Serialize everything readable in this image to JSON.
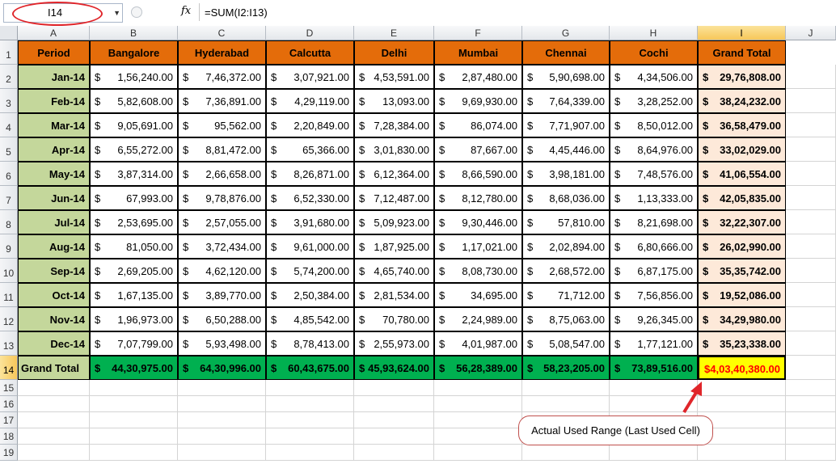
{
  "formula_bar": {
    "name_box": "I14",
    "fx_label": "fx",
    "formula": "=SUM(I2:I13)"
  },
  "columns": [
    "A",
    "B",
    "C",
    "D",
    "E",
    "F",
    "G",
    "H",
    "I",
    "J"
  ],
  "rows": [
    "1",
    "2",
    "3",
    "4",
    "5",
    "6",
    "7",
    "8",
    "9",
    "10",
    "11",
    "12",
    "13",
    "14",
    "15",
    "16",
    "17",
    "18",
    "19"
  ],
  "table": {
    "headers": [
      "Period",
      "Bangalore",
      "Hyderabad",
      "Calcutta",
      "Delhi",
      "Mumbai",
      "Chennai",
      "Cochi",
      "Grand Total"
    ],
    "currency": "$",
    "data": [
      {
        "period": "Jan-14",
        "values": [
          "1,56,240.00",
          "7,46,372.00",
          "3,07,921.00",
          "4,53,591.00",
          "2,87,480.00",
          "5,90,698.00",
          "4,34,506.00",
          "29,76,808.00"
        ]
      },
      {
        "period": "Feb-14",
        "values": [
          "5,82,608.00",
          "7,36,891.00",
          "4,29,119.00",
          "13,093.00",
          "9,69,930.00",
          "7,64,339.00",
          "3,28,252.00",
          "38,24,232.00"
        ]
      },
      {
        "period": "Mar-14",
        "values": [
          "9,05,691.00",
          "95,562.00",
          "2,20,849.00",
          "7,28,384.00",
          "86,074.00",
          "7,71,907.00",
          "8,50,012.00",
          "36,58,479.00"
        ]
      },
      {
        "period": "Apr-14",
        "values": [
          "6,55,272.00",
          "8,81,472.00",
          "65,366.00",
          "3,01,830.00",
          "87,667.00",
          "4,45,446.00",
          "8,64,976.00",
          "33,02,029.00"
        ]
      },
      {
        "period": "May-14",
        "values": [
          "3,87,314.00",
          "2,66,658.00",
          "8,26,871.00",
          "6,12,364.00",
          "8,66,590.00",
          "3,98,181.00",
          "7,48,576.00",
          "41,06,554.00"
        ]
      },
      {
        "period": "Jun-14",
        "values": [
          "67,993.00",
          "9,78,876.00",
          "6,52,330.00",
          "7,12,487.00",
          "8,12,780.00",
          "8,68,036.00",
          "1,13,333.00",
          "42,05,835.00"
        ]
      },
      {
        "period": "Jul-14",
        "values": [
          "2,53,695.00",
          "2,57,055.00",
          "3,91,680.00",
          "5,09,923.00",
          "9,30,446.00",
          "57,810.00",
          "8,21,698.00",
          "32,22,307.00"
        ]
      },
      {
        "period": "Aug-14",
        "values": [
          "81,050.00",
          "3,72,434.00",
          "9,61,000.00",
          "1,87,925.00",
          "1,17,021.00",
          "2,02,894.00",
          "6,80,666.00",
          "26,02,990.00"
        ]
      },
      {
        "period": "Sep-14",
        "values": [
          "2,69,205.00",
          "4,62,120.00",
          "5,74,200.00",
          "4,65,740.00",
          "8,08,730.00",
          "2,68,572.00",
          "6,87,175.00",
          "35,35,742.00"
        ]
      },
      {
        "period": "Oct-14",
        "values": [
          "1,67,135.00",
          "3,89,770.00",
          "2,50,384.00",
          "2,81,534.00",
          "34,695.00",
          "71,712.00",
          "7,56,856.00",
          "19,52,086.00"
        ]
      },
      {
        "period": "Nov-14",
        "values": [
          "1,96,973.00",
          "6,50,288.00",
          "4,85,542.00",
          "70,780.00",
          "2,24,989.00",
          "8,75,063.00",
          "9,26,345.00",
          "34,29,980.00"
        ]
      },
      {
        "period": "Dec-14",
        "values": [
          "7,07,799.00",
          "5,93,498.00",
          "8,78,413.00",
          "2,55,973.00",
          "4,01,987.00",
          "5,08,547.00",
          "1,77,121.00",
          "35,23,338.00"
        ]
      }
    ],
    "grand_total": {
      "label": "Grand Total",
      "values": [
        "44,30,975.00",
        "64,30,996.00",
        "60,43,675.00",
        "45,93,624.00",
        "56,28,389.00",
        "58,23,205.00",
        "73,89,516.00",
        "4,03,40,380.00"
      ]
    }
  },
  "annotation": "Actual Used Range (Last Used Cell)",
  "colors": {
    "header": "#e46c0a",
    "period": "#c4d79b",
    "grand_total_row": "#00b050",
    "total_col": "#fde9d9",
    "final_cell": "#ffff00",
    "final_text": "#ff0000",
    "callout": "#e0252a"
  }
}
